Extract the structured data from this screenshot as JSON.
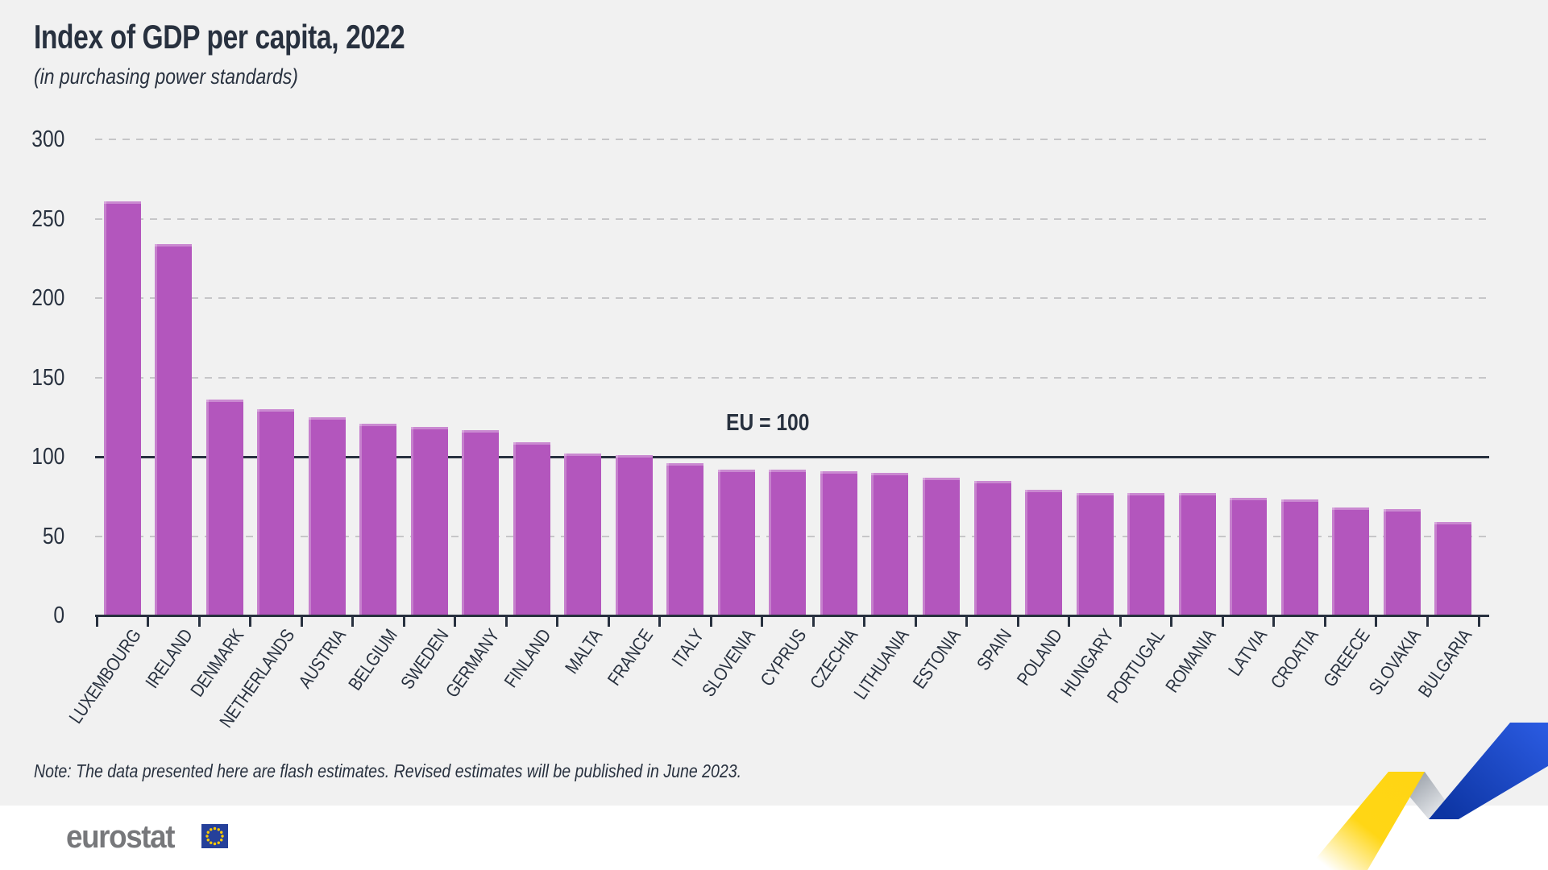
{
  "header": {
    "title": "Index of GDP per capita, 2022",
    "subtitle": "(in purchasing power standards)"
  },
  "chart_data": {
    "type": "bar",
    "title": "Index of GDP per capita, 2022",
    "subtitle": "(in purchasing power standards)",
    "categories": [
      "LUXEMBOURG",
      "IRELAND",
      "DENMARK",
      "NETHERLANDS",
      "AUSTRIA",
      "BELGIUM",
      "SWEDEN",
      "GERMANY",
      "FINLAND",
      "MALTA",
      "FRANCE",
      "ITALY",
      "SLOVENIA",
      "CYPRUS",
      "CZECHIA",
      "LITHUANIA",
      "ESTONIA",
      "SPAIN",
      "POLAND",
      "HUNGARY",
      "PORTUGAL",
      "ROMANIA",
      "LATVIA",
      "CROATIA",
      "GREECE",
      "SLOVAKIA",
      "BULGARIA"
    ],
    "values": [
      261,
      234,
      136,
      130,
      125,
      121,
      119,
      117,
      109,
      102,
      101,
      96,
      92,
      92,
      91,
      90,
      87,
      85,
      79,
      77,
      77,
      77,
      74,
      73,
      68,
      67,
      59
    ],
    "xlabel": "",
    "ylabel": "",
    "ylim": [
      0,
      300
    ],
    "y_ticks": [
      0,
      50,
      100,
      150,
      200,
      250,
      300
    ],
    "grid": "dashed-horizontal",
    "legend": "none",
    "reference_line": {
      "value": 100,
      "label": "EU = 100"
    },
    "bar_color": "#b356bd"
  },
  "note": "Note: The data presented here are flash estimates. Revised estimates will be published in June 2023.",
  "footer": {
    "logo_text": "eurostat",
    "flag_icon": "eu-flag-icon"
  },
  "colors": {
    "background": "#f1f1f1",
    "footer_background": "#ffffff",
    "ink": "#28313f",
    "gridline": "#c6c6c8",
    "bar": "#b356bd",
    "logo_gray": "#77787b",
    "flag_blue": "#25409a",
    "star_yellow": "#ffcc00",
    "ribbon_yellow": "#ffd513",
    "ribbon_silver": "#9aa0a9",
    "ribbon_blue": "#1c4ac0"
  }
}
